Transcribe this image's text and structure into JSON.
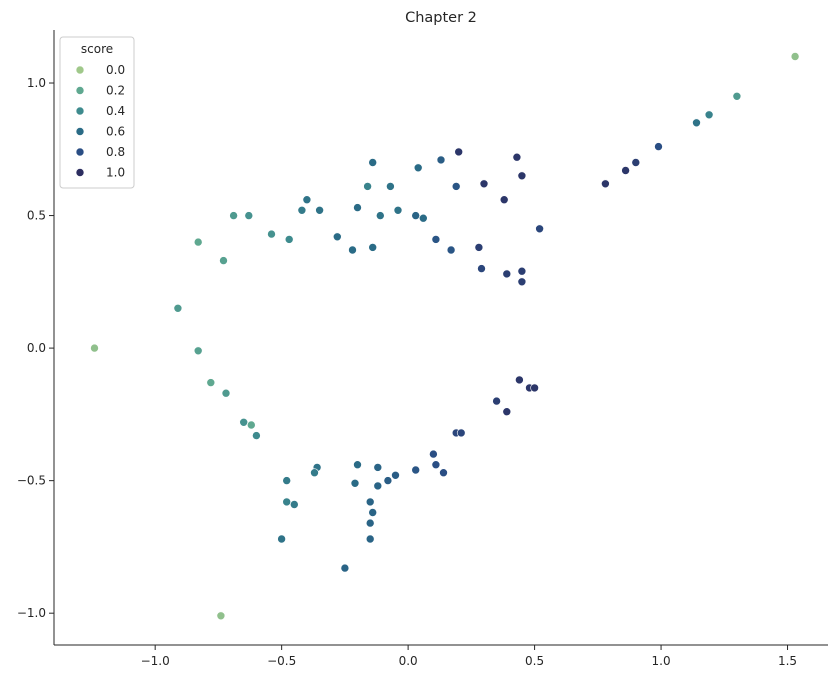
{
  "chart_data": {
    "type": "scatter",
    "title": "Chapter 2",
    "xlabel": "",
    "ylabel": "",
    "xlim": [
      -1.4,
      1.66
    ],
    "ylim": [
      -1.12,
      1.2
    ],
    "xticks": [
      -1.0,
      -0.5,
      0.0,
      0.5,
      1.0,
      1.5
    ],
    "yticks": [
      -1.0,
      -0.5,
      0.0,
      0.5,
      1.0
    ],
    "xtick_labels": [
      "−1.0",
      "−0.5",
      "0.0",
      "0.5",
      "1.0",
      "1.5"
    ],
    "ytick_labels": [
      "−1.0",
      "−0.5",
      "0.0",
      "0.5",
      "1.0"
    ],
    "grid": false,
    "legend": {
      "title": "score",
      "position": "top-left",
      "entries": [
        {
          "label": "0.0",
          "color": "#a0c88a"
        },
        {
          "label": "0.2",
          "color": "#5fa890"
        },
        {
          "label": "0.4",
          "color": "#3e8b8e"
        },
        {
          "label": "0.6",
          "color": "#2a6b86"
        },
        {
          "label": "0.8",
          "color": "#2a4e84"
        },
        {
          "label": "1.0",
          "color": "#2c2e60"
        }
      ]
    },
    "color_scale": [
      "#a0c88a",
      "#5fa890",
      "#3e8b8e",
      "#2a6b86",
      "#2a4e84",
      "#2c2e60"
    ],
    "point_color": "score",
    "points": [
      {
        "x": 1.53,
        "y": 1.1,
        "score": 0.05
      },
      {
        "x": -1.24,
        "y": 0.0,
        "score": 0.05
      },
      {
        "x": -0.74,
        "y": -1.01,
        "score": 0.05
      },
      {
        "x": 1.3,
        "y": 0.95,
        "score": 0.3
      },
      {
        "x": 1.19,
        "y": 0.88,
        "score": 0.45
      },
      {
        "x": 1.14,
        "y": 0.85,
        "score": 0.55
      },
      {
        "x": 0.99,
        "y": 0.76,
        "score": 0.8
      },
      {
        "x": 0.9,
        "y": 0.7,
        "score": 0.9
      },
      {
        "x": 0.86,
        "y": 0.67,
        "score": 0.95
      },
      {
        "x": 0.78,
        "y": 0.62,
        "score": 0.95
      },
      {
        "x": 0.43,
        "y": 0.72,
        "score": 0.95
      },
      {
        "x": 0.45,
        "y": 0.65,
        "score": 0.95
      },
      {
        "x": 0.38,
        "y": 0.56,
        "score": 0.95
      },
      {
        "x": 0.3,
        "y": 0.62,
        "score": 0.95
      },
      {
        "x": 0.2,
        "y": 0.74,
        "score": 0.95
      },
      {
        "x": 0.52,
        "y": 0.45,
        "score": 0.85
      },
      {
        "x": 0.28,
        "y": 0.38,
        "score": 0.9
      },
      {
        "x": 0.13,
        "y": 0.71,
        "score": 0.7
      },
      {
        "x": 0.04,
        "y": 0.68,
        "score": 0.6
      },
      {
        "x": -0.14,
        "y": 0.7,
        "score": 0.6
      },
      {
        "x": 0.19,
        "y": 0.61,
        "score": 0.75
      },
      {
        "x": -0.07,
        "y": 0.61,
        "score": 0.55
      },
      {
        "x": -0.16,
        "y": 0.61,
        "score": 0.45
      },
      {
        "x": -0.4,
        "y": 0.56,
        "score": 0.55
      },
      {
        "x": -0.35,
        "y": 0.52,
        "score": 0.55
      },
      {
        "x": -0.42,
        "y": 0.52,
        "score": 0.5
      },
      {
        "x": -0.2,
        "y": 0.53,
        "score": 0.6
      },
      {
        "x": -0.11,
        "y": 0.5,
        "score": 0.55
      },
      {
        "x": -0.04,
        "y": 0.52,
        "score": 0.55
      },
      {
        "x": 0.03,
        "y": 0.5,
        "score": 0.65
      },
      {
        "x": 0.06,
        "y": 0.49,
        "score": 0.6
      },
      {
        "x": -0.69,
        "y": 0.5,
        "score": 0.3
      },
      {
        "x": -0.63,
        "y": 0.5,
        "score": 0.35
      },
      {
        "x": -0.83,
        "y": 0.4,
        "score": 0.2
      },
      {
        "x": -0.47,
        "y": 0.41,
        "score": 0.4
      },
      {
        "x": -0.54,
        "y": 0.43,
        "score": 0.35
      },
      {
        "x": -0.73,
        "y": 0.33,
        "score": 0.25
      },
      {
        "x": -0.91,
        "y": 0.15,
        "score": 0.3
      },
      {
        "x": -0.83,
        "y": -0.01,
        "score": 0.25
      },
      {
        "x": -0.78,
        "y": -0.13,
        "score": 0.2
      },
      {
        "x": -0.72,
        "y": -0.17,
        "score": 0.3
      },
      {
        "x": -0.65,
        "y": -0.28,
        "score": 0.35
      },
      {
        "x": -0.62,
        "y": -0.29,
        "score": 0.2
      },
      {
        "x": -0.6,
        "y": -0.33,
        "score": 0.4
      },
      {
        "x": -0.48,
        "y": -0.5,
        "score": 0.5
      },
      {
        "x": -0.48,
        "y": -0.58,
        "score": 0.45
      },
      {
        "x": -0.45,
        "y": -0.59,
        "score": 0.5
      },
      {
        "x": -0.5,
        "y": -0.72,
        "score": 0.55
      },
      {
        "x": -0.25,
        "y": -0.83,
        "score": 0.65
      },
      {
        "x": -0.15,
        "y": -0.72,
        "score": 0.65
      },
      {
        "x": -0.15,
        "y": -0.66,
        "score": 0.65
      },
      {
        "x": -0.14,
        "y": -0.62,
        "score": 0.65
      },
      {
        "x": -0.15,
        "y": -0.58,
        "score": 0.65
      },
      {
        "x": -0.12,
        "y": -0.52,
        "score": 0.65
      },
      {
        "x": -0.08,
        "y": -0.5,
        "score": 0.7
      },
      {
        "x": -0.21,
        "y": -0.51,
        "score": 0.6
      },
      {
        "x": -0.36,
        "y": -0.45,
        "score": 0.55
      },
      {
        "x": -0.37,
        "y": -0.47,
        "score": 0.5
      },
      {
        "x": -0.2,
        "y": -0.44,
        "score": 0.6
      },
      {
        "x": -0.12,
        "y": -0.45,
        "score": 0.65
      },
      {
        "x": -0.05,
        "y": -0.48,
        "score": 0.7
      },
      {
        "x": 0.03,
        "y": -0.46,
        "score": 0.75
      },
      {
        "x": 0.11,
        "y": -0.44,
        "score": 0.8
      },
      {
        "x": 0.14,
        "y": -0.47,
        "score": 0.8
      },
      {
        "x": 0.1,
        "y": -0.4,
        "score": 0.8
      },
      {
        "x": 0.19,
        "y": -0.32,
        "score": 0.85
      },
      {
        "x": 0.21,
        "y": -0.32,
        "score": 0.85
      },
      {
        "x": 0.35,
        "y": -0.2,
        "score": 0.9
      },
      {
        "x": 0.39,
        "y": -0.24,
        "score": 0.95
      },
      {
        "x": 0.44,
        "y": -0.12,
        "score": 0.95
      },
      {
        "x": 0.48,
        "y": -0.15,
        "score": 0.95
      },
      {
        "x": 0.5,
        "y": -0.15,
        "score": 0.95
      },
      {
        "x": 0.45,
        "y": 0.29,
        "score": 0.9
      },
      {
        "x": 0.45,
        "y": 0.25,
        "score": 0.9
      },
      {
        "x": 0.39,
        "y": 0.28,
        "score": 0.9
      },
      {
        "x": 0.29,
        "y": 0.3,
        "score": 0.85
      },
      {
        "x": -0.28,
        "y": 0.42,
        "score": 0.6
      },
      {
        "x": -0.22,
        "y": 0.37,
        "score": 0.6
      },
      {
        "x": -0.14,
        "y": 0.38,
        "score": 0.6
      },
      {
        "x": 0.11,
        "y": 0.41,
        "score": 0.75
      },
      {
        "x": 0.17,
        "y": 0.37,
        "score": 0.75
      }
    ]
  }
}
